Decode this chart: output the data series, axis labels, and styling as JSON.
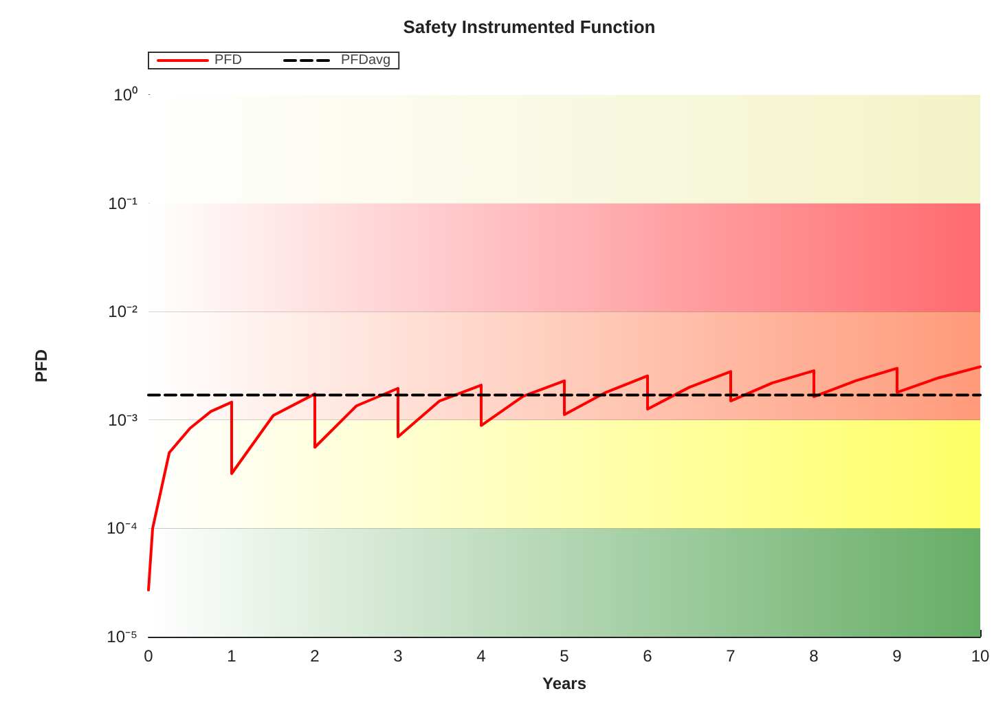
{
  "chart_data": {
    "type": "line",
    "title": "Safety Instrumented Function",
    "xlabel": "Years",
    "ylabel": "PFD",
    "log": "y",
    "grid": "y",
    "legend": "top left",
    "marker": "none",
    "xlim": [
      0,
      10
    ],
    "xticks": [
      0,
      1,
      2,
      3,
      4,
      5,
      6,
      7,
      8,
      9,
      10
    ],
    "ylim": [
      1e-05,
      1
    ],
    "yticks": [
      {
        "value": 1e-05,
        "label": "10⁻⁵"
      },
      {
        "value": 0.0001,
        "label": "10⁻⁴"
      },
      {
        "value": 0.001,
        "label": "10⁻³"
      },
      {
        "value": 0.01,
        "label": "10⁻²"
      },
      {
        "value": 0.1,
        "label": "10⁻¹"
      },
      {
        "value": 1,
        "label": "10⁰"
      }
    ],
    "bands": [
      {
        "axis": "y",
        "from": 1e-05,
        "to": 0.0001,
        "color": "#66ad66"
      },
      {
        "axis": "y",
        "from": 0.0001,
        "to": 0.001,
        "color": "#ffff66"
      },
      {
        "axis": "y",
        "from": 0.001,
        "to": 0.01,
        "color": "#ff9a7a"
      },
      {
        "axis": "y",
        "from": 0.01,
        "to": 0.1,
        "color": "#ff6a6e"
      },
      {
        "axis": "y",
        "from": 0.1,
        "to": 1,
        "color": "#f3f3c8"
      }
    ],
    "series": [
      {
        "name": "PFD",
        "color": "#ff0000",
        "line_style": "solid",
        "x": [
          0,
          0.05,
          0.25,
          0.5,
          0.75,
          1,
          1,
          1.5,
          2,
          2,
          2.5,
          3,
          3,
          3.5,
          4,
          4,
          4.5,
          5,
          5,
          5.5,
          6,
          6,
          6.5,
          7,
          7,
          7.5,
          8,
          8,
          8.5,
          9,
          9,
          9.5,
          10
        ],
        "values": [
          2.7e-05,
          0.0001,
          0.0005,
          0.00084,
          0.0012,
          0.00146,
          0.00032,
          0.0011,
          0.00174,
          0.00056,
          0.00135,
          0.00196,
          0.0007,
          0.0015,
          0.0021,
          0.00089,
          0.00165,
          0.0023,
          0.00112,
          0.0018,
          0.00255,
          0.00126,
          0.002,
          0.0028,
          0.0015,
          0.0022,
          0.00285,
          0.00164,
          0.0023,
          0.003,
          0.0018,
          0.00245,
          0.0031
        ]
      },
      {
        "name": "PFDavg",
        "color": "#000000",
        "line_style": "dashed",
        "x": [
          0,
          10
        ],
        "values": [
          0.0017,
          0.0017
        ]
      }
    ]
  }
}
